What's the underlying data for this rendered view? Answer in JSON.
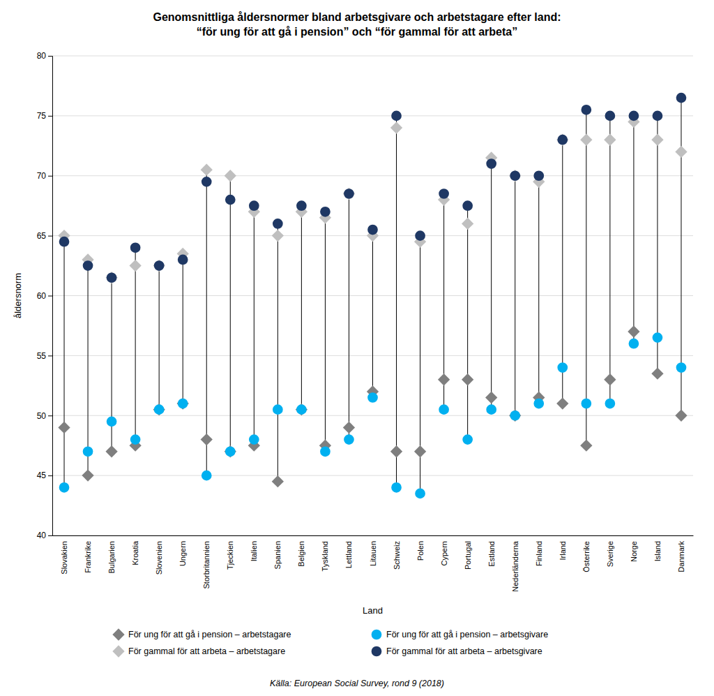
{
  "chart_data": {
    "type": "dot",
    "title": "Genomsnittliga åldersnormer bland arbetsgivare och arbetstagare efter land:\n“för ung för att gå i pension” och “för gammal för att arbeta”",
    "x_label": "Land",
    "y_label": "åldersnorm",
    "source": "Källa: European Social Survey, rond 9 (2018)",
    "categories": [
      "Slovakien",
      "Frankrike",
      "Bulgarien",
      "Kroatia",
      "Slovenien",
      "Ungern",
      "Storbritannien",
      "Tjeckien",
      "Italien",
      "Spanien",
      "Belgien",
      "Tyskland",
      "Lettland",
      "Litauen",
      "Schweiz",
      "Polen",
      "Cypern",
      "Portugal",
      "Estland",
      "Nederländerna",
      "Finland",
      "Irland",
      "Österrike",
      "Sverige",
      "Norge",
      "Island",
      "Danmark"
    ],
    "series": [
      {
        "name": "För ung för att gå i pension – arbetstagare",
        "color": "#7f7f7f",
        "marker": "diamond",
        "values": [
          49.0,
          45.0,
          47.0,
          47.5,
          50.5,
          51.0,
          48.0,
          47.0,
          47.5,
          44.5,
          50.5,
          47.5,
          49.0,
          52.0,
          47.0,
          47.0,
          53.0,
          53.0,
          51.5,
          50.0,
          51.5,
          51.0,
          47.5,
          53.0,
          57.0,
          53.5,
          50.0
        ]
      },
      {
        "name": "För gammal för att arbeta – arbetstagare",
        "color": "#bfbfbf",
        "marker": "diamond",
        "values": [
          65.0,
          63.0,
          61.5,
          62.5,
          62.5,
          63.5,
          70.5,
          70.0,
          67.0,
          65.0,
          67.0,
          66.5,
          68.5,
          65.0,
          74.0,
          64.5,
          68.0,
          66.0,
          71.5,
          70.0,
          69.5,
          73.0,
          73.0,
          73.0,
          74.5,
          73.0,
          72.0
        ]
      },
      {
        "name": "För ung för att gå i pension – arbetsgivare",
        "color": "#00b0f0",
        "marker": "circle",
        "values": [
          44.0,
          47.0,
          49.5,
          48.0,
          50.5,
          51.0,
          45.0,
          47.0,
          48.0,
          50.5,
          50.5,
          47.0,
          48.0,
          51.5,
          44.0,
          43.5,
          50.5,
          48.0,
          50.5,
          50.0,
          51.0,
          54.0,
          51.0,
          51.0,
          56.0,
          56.5,
          54.0
        ]
      },
      {
        "name": "För gammal för att arbeta – arbetsgivare",
        "color": "#1f3864",
        "marker": "circle",
        "values": [
          64.5,
          62.5,
          61.5,
          64.0,
          62.5,
          63.0,
          69.5,
          68.0,
          67.5,
          66.0,
          67.5,
          67.0,
          68.5,
          65.5,
          75.0,
          65.0,
          68.5,
          67.5,
          71.0,
          70.0,
          70.0,
          73.0,
          75.5,
          75.0,
          75.0,
          75.0,
          76.5
        ]
      }
    ],
    "ylim": [
      40,
      80
    ],
    "yticks": [
      40,
      45,
      50,
      55,
      60,
      65,
      70,
      75,
      80
    ],
    "grid": true,
    "legend": "bottom"
  }
}
